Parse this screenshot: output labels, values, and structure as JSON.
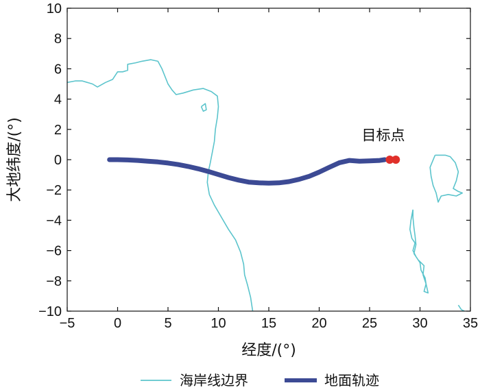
{
  "chart_data": {
    "type": "line",
    "xlabel": "经度/(°)",
    "ylabel": "大地纬度/(°)",
    "xlim": [
      -5,
      35
    ],
    "ylim": [
      -10,
      10
    ],
    "xticks": [
      -5,
      0,
      5,
      10,
      15,
      20,
      25,
      30,
      35
    ],
    "yticks": [
      10,
      8,
      6,
      4,
      2,
      0,
      -2,
      -4,
      -6,
      -8,
      -10
    ],
    "grid": false,
    "legend_position": "bottom",
    "annotation": {
      "text": "目标点",
      "x": 26.8,
      "y": 1.3
    },
    "series": [
      {
        "name": "海岸线边界",
        "color": "#5bc4cc",
        "segments": [
          [
            [
              -5,
              5.1
            ],
            [
              -4.2,
              5.2
            ],
            [
              -3.5,
              5.2
            ],
            [
              -2.5,
              5.0
            ],
            [
              -2,
              4.8
            ],
            [
              -1.2,
              5.1
            ],
            [
              -0.5,
              5.3
            ],
            [
              0,
              5.8
            ],
            [
              0.5,
              5.8
            ],
            [
              1,
              5.9
            ],
            [
              1,
              6.3
            ],
            [
              1.8,
              6.4
            ],
            [
              2.4,
              6.5
            ],
            [
              3.3,
              6.6
            ],
            [
              4,
              6.5
            ],
            [
              4.4,
              6.0
            ],
            [
              5,
              5.0
            ],
            [
              5.4,
              4.6
            ],
            [
              5.8,
              4.3
            ],
            [
              6.5,
              4.4
            ],
            [
              7.5,
              4.6
            ],
            [
              8.5,
              4.7
            ],
            [
              9.3,
              4.5
            ],
            [
              9.9,
              4.2
            ],
            [
              10,
              3.5
            ],
            [
              9.9,
              2.8
            ],
            [
              9.7,
              2.0
            ],
            [
              9.6,
              1.2
            ],
            [
              9.4,
              0.5
            ],
            [
              9.2,
              -0.2
            ],
            [
              9,
              -0.8
            ],
            [
              8.9,
              -1.5
            ],
            [
              9.1,
              -2.3
            ],
            [
              9.6,
              -3.0
            ],
            [
              10.3,
              -3.8
            ],
            [
              11,
              -4.6
            ],
            [
              11.7,
              -5.3
            ],
            [
              12.2,
              -6.1
            ],
            [
              12.5,
              -6.9
            ],
            [
              12.6,
              -7.6
            ],
            [
              12.9,
              -8.3
            ],
            [
              13.2,
              -9.1
            ],
            [
              13.4,
              -10
            ]
          ],
          [
            [
              8.3,
              3.5
            ],
            [
              8.7,
              3.7
            ],
            [
              8.8,
              3.3
            ],
            [
              8.5,
              3.2
            ],
            [
              8.3,
              3.5
            ]
          ],
          [
            [
              31.5,
              0.3
            ],
            [
              32,
              0.3
            ],
            [
              32.5,
              0.3
            ],
            [
              33,
              0.2
            ],
            [
              33.5,
              -0.2
            ],
            [
              33.8,
              -0.8
            ],
            [
              33.6,
              -1.4
            ],
            [
              33.3,
              -1.9
            ],
            [
              33.8,
              -2.1
            ],
            [
              34.2,
              -2.2
            ],
            [
              33.6,
              -2.4
            ],
            [
              32.8,
              -2.3
            ],
            [
              32.1,
              -2.4
            ],
            [
              31.8,
              -2.8
            ],
            [
              31.6,
              -2.2
            ],
            [
              31.3,
              -1.7
            ],
            [
              31.1,
              -1.1
            ],
            [
              31,
              -0.5
            ],
            [
              31.5,
              0.3
            ]
          ],
          [
            [
              29.3,
              -3.3
            ],
            [
              29.1,
              -4.0
            ],
            [
              29.0,
              -4.6
            ],
            [
              29.2,
              -5.2
            ],
            [
              29.5,
              -5.5
            ],
            [
              29.3,
              -6.0
            ],
            [
              29.6,
              -6.4
            ],
            [
              30.0,
              -6.8
            ],
            [
              30.1,
              -7.3
            ],
            [
              30.5,
              -7.8
            ],
            [
              30.6,
              -8.2
            ],
            [
              30.4,
              -8.7
            ],
            [
              30.8,
              -8.8
            ],
            [
              30.6,
              -8.2
            ],
            [
              30.3,
              -7.6
            ],
            [
              30.4,
              -7.0
            ],
            [
              29.8,
              -6.6
            ],
            [
              29.4,
              -6.2
            ],
            [
              29.6,
              -5.6
            ],
            [
              29.5,
              -5.0
            ],
            [
              29.4,
              -4.5
            ],
            [
              29.3,
              -3.8
            ],
            [
              29.3,
              -3.3
            ]
          ],
          [
            [
              33.8,
              -9.6
            ],
            [
              34.1,
              -9.9
            ],
            [
              34.4,
              -10
            ]
          ]
        ]
      },
      {
        "name": "地面轨迹",
        "color": "#3c4a94",
        "points": [
          [
            -0.8,
            0
          ],
          [
            0,
            0
          ],
          [
            1,
            -0.02
          ],
          [
            2,
            -0.05
          ],
          [
            3,
            -0.1
          ],
          [
            4,
            -0.15
          ],
          [
            5,
            -0.22
          ],
          [
            6,
            -0.32
          ],
          [
            7,
            -0.45
          ],
          [
            8,
            -0.6
          ],
          [
            9,
            -0.78
          ],
          [
            10,
            -0.98
          ],
          [
            11,
            -1.18
          ],
          [
            12,
            -1.35
          ],
          [
            13,
            -1.48
          ],
          [
            14,
            -1.53
          ],
          [
            15,
            -1.55
          ],
          [
            16,
            -1.53
          ],
          [
            17,
            -1.45
          ],
          [
            18,
            -1.3
          ],
          [
            19,
            -1.1
          ],
          [
            20,
            -0.82
          ],
          [
            21,
            -0.5
          ],
          [
            22,
            -0.2
          ],
          [
            23,
            -0.05
          ],
          [
            24,
            -0.1
          ],
          [
            25,
            -0.08
          ],
          [
            26,
            -0.05
          ],
          [
            26.5,
            0
          ]
        ]
      }
    ],
    "target_points": {
      "color": "#e0302a",
      "points": [
        [
          27.0,
          0
        ],
        [
          27.6,
          0
        ]
      ]
    }
  }
}
